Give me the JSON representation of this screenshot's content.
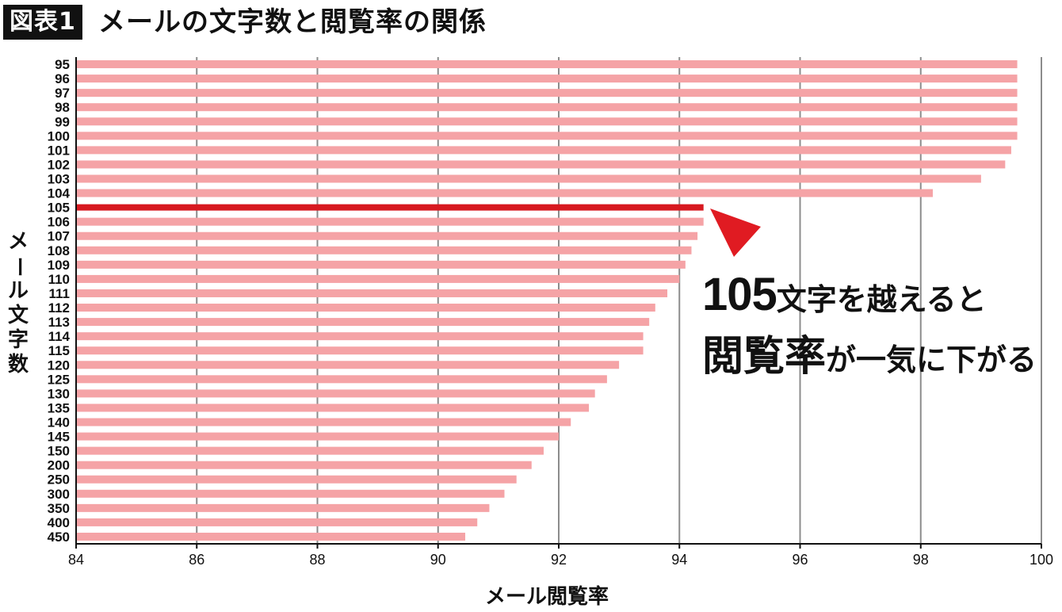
{
  "header": {
    "badge": "図表1",
    "title": "メールの文字数と閲覧率の関係"
  },
  "annotation": {
    "line1_big": "105",
    "line1_small": "文字を越えると",
    "line2_big": "閲覧率",
    "line2_small": "が一気に下がる"
  },
  "colors": {
    "bar": "#f5a3a6",
    "highlight": "#d71920",
    "grid": "#8c8c8c",
    "arrow": "#e01b22"
  },
  "chart_data": {
    "type": "bar",
    "orientation": "horizontal",
    "xlabel": "メール閲覧率",
    "ylabel": "メール文字数",
    "xlim": [
      84,
      100
    ],
    "xticks": [
      84,
      86,
      88,
      90,
      92,
      94,
      96,
      98,
      100
    ],
    "grid": "vertical",
    "highlight_category": "105",
    "categories": [
      "95",
      "96",
      "97",
      "98",
      "99",
      "100",
      "101",
      "102",
      "103",
      "104",
      "105",
      "106",
      "107",
      "108",
      "109",
      "110",
      "111",
      "112",
      "113",
      "114",
      "115",
      "120",
      "125",
      "130",
      "135",
      "140",
      "145",
      "150",
      "200",
      "250",
      "300",
      "350",
      "400",
      "450"
    ],
    "values": [
      99.6,
      99.6,
      99.6,
      99.6,
      99.6,
      99.6,
      99.5,
      99.4,
      99.0,
      98.2,
      94.4,
      94.4,
      94.3,
      94.2,
      94.1,
      94.0,
      93.8,
      93.6,
      93.5,
      93.4,
      93.4,
      93.0,
      92.8,
      92.6,
      92.5,
      92.2,
      92.0,
      91.75,
      91.55,
      91.3,
      91.1,
      90.85,
      90.65,
      90.45
    ]
  }
}
